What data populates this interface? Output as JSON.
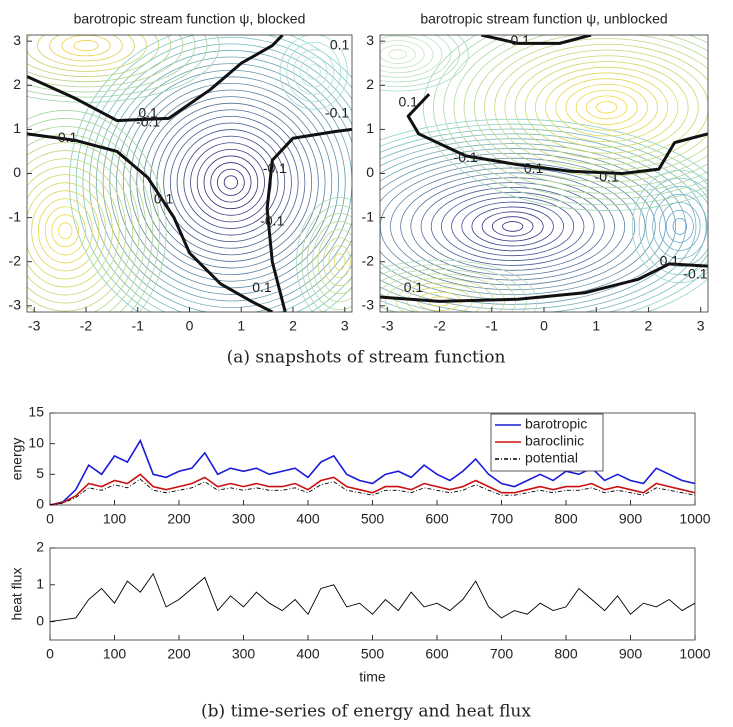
{
  "chart_data": [
    {
      "type": "contour",
      "title": "barotropic stream function ψ, blocked",
      "xlim": [
        -3.14,
        3.14
      ],
      "ylim": [
        -3.14,
        3.14
      ],
      "xticks": [
        -3,
        -2,
        -1,
        0,
        1,
        2,
        3
      ],
      "yticks": [
        -3,
        -2,
        -1,
        0,
        1,
        2,
        3
      ],
      "contour_labels": [
        "0.1",
        "-0.1",
        "-0.1",
        "0.1",
        "-0.1",
        "0.1",
        "-0.1",
        "0.1",
        "-0.1"
      ]
    },
    {
      "type": "contour",
      "title": "barotropic stream function ψ, unblocked",
      "xlim": [
        -3.14,
        3.14
      ],
      "ylim": [
        -3.14,
        3.14
      ],
      "xticks": [
        -3,
        -2,
        -1,
        0,
        1,
        2,
        3
      ],
      "yticks": [
        -3,
        -2,
        -1,
        0,
        1,
        2,
        3
      ],
      "contour_labels": [
        "-0.1",
        "0.1",
        "-0.1",
        "0.1",
        "-0.1",
        "0.1",
        "-0.1",
        "0.1"
      ]
    },
    {
      "type": "line",
      "ylabel": "energy",
      "legend": "upper right",
      "xlim": [
        0,
        1000
      ],
      "ylim": [
        0,
        15
      ],
      "xticks": [
        0,
        100,
        200,
        300,
        400,
        500,
        600,
        700,
        800,
        900,
        1000
      ],
      "yticks": [
        0,
        5,
        10,
        15
      ],
      "x": [
        0,
        20,
        40,
        60,
        80,
        100,
        120,
        140,
        160,
        180,
        200,
        220,
        240,
        260,
        280,
        300,
        320,
        340,
        360,
        380,
        400,
        420,
        440,
        460,
        480,
        500,
        520,
        540,
        560,
        580,
        600,
        620,
        640,
        660,
        680,
        700,
        720,
        740,
        760,
        780,
        800,
        820,
        840,
        860,
        880,
        900,
        920,
        940,
        960,
        980,
        1000
      ],
      "series": [
        {
          "name": "barotropic",
          "color": "#1a1ad8",
          "dash": "none",
          "values": [
            0,
            0.5,
            2.5,
            6.5,
            5,
            8,
            7,
            10.5,
            5,
            4.5,
            5.5,
            6,
            8.5,
            5,
            6,
            5.5,
            6,
            5,
            5.5,
            6,
            4.5,
            7,
            8,
            5,
            4,
            3.5,
            5,
            5.5,
            4.5,
            6.5,
            5,
            4,
            5.5,
            7.5,
            5,
            3.5,
            3,
            4,
            5,
            4,
            5.5,
            5,
            6,
            4,
            5,
            4,
            3.5,
            6,
            5,
            4,
            3.5
          ]
        },
        {
          "name": "baroclinic",
          "color": "#cc1010",
          "dash": "none",
          "values": [
            0,
            0.4,
            1.5,
            3.5,
            3,
            4,
            3.5,
            5,
            3,
            2.5,
            3,
            3.5,
            4.5,
            3,
            3.5,
            3,
            3.5,
            3,
            3,
            3.5,
            2.5,
            4,
            4.5,
            3,
            2.5,
            2,
            3,
            3,
            2.5,
            3.5,
            3,
            2.5,
            3,
            4,
            3,
            2,
            2,
            2.5,
            3,
            2.5,
            3,
            3,
            3.5,
            2.5,
            3,
            2.5,
            2,
            3.5,
            3,
            2.5,
            2
          ]
        },
        {
          "name": "potential",
          "color": "#000000",
          "dash": "4 2 1 2",
          "values": [
            0,
            0.3,
            1.2,
            2.8,
            2.4,
            3.3,
            2.8,
            4.2,
            2.4,
            2,
            2.4,
            2.8,
            3.8,
            2.4,
            2.8,
            2.4,
            2.8,
            2.4,
            2.4,
            2.8,
            2,
            3.3,
            3.8,
            2.4,
            2,
            1.6,
            2.4,
            2.4,
            2,
            2.8,
            2.4,
            2,
            2.4,
            3.3,
            2.4,
            1.6,
            1.6,
            2,
            2.4,
            2,
            2.4,
            2.4,
            2.8,
            2,
            2.4,
            2,
            1.6,
            2.8,
            2.4,
            2,
            1.6
          ]
        }
      ]
    },
    {
      "type": "line",
      "ylabel": "heat flux",
      "xlabel": "time",
      "xlim": [
        0,
        1000
      ],
      "ylim": [
        -0.5,
        2
      ],
      "xticks": [
        0,
        100,
        200,
        300,
        400,
        500,
        600,
        700,
        800,
        900,
        1000
      ],
      "yticks": [
        0,
        1,
        2
      ],
      "x": [
        0,
        20,
        40,
        60,
        80,
        100,
        120,
        140,
        160,
        180,
        200,
        220,
        240,
        260,
        280,
        300,
        320,
        340,
        360,
        380,
        400,
        420,
        440,
        460,
        480,
        500,
        520,
        540,
        560,
        580,
        600,
        620,
        640,
        660,
        680,
        700,
        720,
        740,
        760,
        780,
        800,
        820,
        840,
        860,
        880,
        900,
        920,
        940,
        960,
        980,
        1000
      ],
      "series": [
        {
          "color": "#000000",
          "dash": "none",
          "values": [
            0,
            0.05,
            0.1,
            0.6,
            0.9,
            0.5,
            1.1,
            0.8,
            1.3,
            0.4,
            0.6,
            0.9,
            1.2,
            0.3,
            0.7,
            0.4,
            0.8,
            0.5,
            0.3,
            0.6,
            0.2,
            0.9,
            1.0,
            0.4,
            0.5,
            0.2,
            0.6,
            0.3,
            0.8,
            0.4,
            0.5,
            0.3,
            0.6,
            1.1,
            0.4,
            0.1,
            0.3,
            0.2,
            0.5,
            0.3,
            0.4,
            0.9,
            0.6,
            0.3,
            0.7,
            0.2,
            0.5,
            0.4,
            0.6,
            0.3,
            0.5
          ]
        }
      ]
    }
  ],
  "captions": [
    "(a) snapshots of stream function",
    "(b) time-series of energy and heat flux"
  ]
}
